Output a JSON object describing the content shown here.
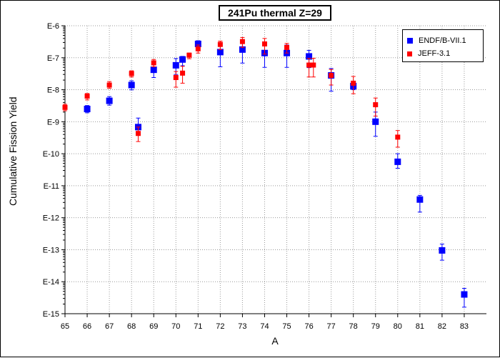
{
  "chart_data": {
    "type": "scatter",
    "title": "241Pu thermal Z=29",
    "xlabel": "A",
    "ylabel": "Cumulative Fission Yield",
    "xlim": [
      65,
      84
    ],
    "ylim": [
      1e-15,
      1e-06
    ],
    "yscale": "log",
    "grid": true,
    "legend_position": "top-right",
    "x_ticks": [
      "65",
      "66",
      "67",
      "68",
      "69",
      "70",
      "71",
      "72",
      "73",
      "74",
      "75",
      "76",
      "77",
      "78",
      "79",
      "80",
      "81",
      "82",
      "83"
    ],
    "y_ticks": [
      "E-6",
      "E-7",
      "E-8",
      "E-9",
      "E-10",
      "E-11",
      "E-12",
      "E-13",
      "E-14",
      "E-15"
    ],
    "series": [
      {
        "name": "ENDF/B-VII.1",
        "color": "#0000ff",
        "marker": "square",
        "points": [
          {
            "x": 66,
            "y": 2.5e-09,
            "lo": 1.9e-09,
            "hi": 3.2e-09
          },
          {
            "x": 67,
            "y": 4.5e-09,
            "lo": 3.3e-09,
            "hi": 6.1e-09
          },
          {
            "x": 68,
            "y": 1.4e-08,
            "lo": 9.9e-09,
            "hi": 1.9e-08
          },
          {
            "x": 68.3,
            "y": 6.8e-10,
            "lo": 4.5e-10,
            "hi": 1.3e-09
          },
          {
            "x": 69,
            "y": 4.2e-08,
            "lo": 2.4e-08,
            "hi": 6.7e-08
          },
          {
            "x": 70,
            "y": 5.8e-08,
            "lo": 3e-08,
            "hi": 9.4e-08
          },
          {
            "x": 70.3,
            "y": 8.8e-08,
            "lo": 5.6e-08,
            "hi": 1.1e-07
          },
          {
            "x": 71,
            "y": 2.7e-07,
            "lo": 2e-07,
            "hi": 3.4e-07
          },
          {
            "x": 72,
            "y": 1.5e-07,
            "lo": 5.2e-08,
            "hi": 2.9e-07
          },
          {
            "x": 73,
            "y": 1.8e-07,
            "lo": 6.8e-08,
            "hi": 3.4e-07
          },
          {
            "x": 74,
            "y": 1.4e-07,
            "lo": 5e-08,
            "hi": 2.4e-07
          },
          {
            "x": 75,
            "y": 1.4e-07,
            "lo": 5e-08,
            "hi": 2.5e-07
          },
          {
            "x": 76,
            "y": 1.1e-07,
            "lo": 4.9e-08,
            "hi": 1.7e-07
          },
          {
            "x": 77,
            "y": 2.8e-08,
            "lo": 9e-09,
            "hi": 4.6e-08
          },
          {
            "x": 78,
            "y": 1.3e-08,
            "lo": 1e-08,
            "hi": 1.7e-08
          },
          {
            "x": 79,
            "y": 1e-09,
            "lo": 3.5e-10,
            "hi": 2e-09
          },
          {
            "x": 80,
            "y": 5.6e-11,
            "lo": 3.5e-11,
            "hi": 1e-10
          },
          {
            "x": 81,
            "y": 3.7e-12,
            "lo": 1.5e-12,
            "hi": 5e-12
          },
          {
            "x": 82,
            "y": 9.5e-14,
            "lo": 4.7e-14,
            "hi": 1.5e-13
          },
          {
            "x": 83,
            "y": 4e-15,
            "lo": 1.6e-15,
            "hi": 6.2e-15
          }
        ]
      },
      {
        "name": "JEFF-3.1",
        "color": "#ff0000",
        "marker": "square",
        "points": [
          {
            "x": 65,
            "y": 2.8e-09,
            "lo": 2.2e-09,
            "hi": 3.5e-09
          },
          {
            "x": 66,
            "y": 6.3e-09,
            "lo": 4.8e-09,
            "hi": 7.6e-09
          },
          {
            "x": 67,
            "y": 1.4e-08,
            "lo": 1.1e-08,
            "hi": 1.8e-08
          },
          {
            "x": 68,
            "y": 3.2e-08,
            "lo": 2.5e-08,
            "hi": 3.9e-08
          },
          {
            "x": 68.3,
            "y": 4.3e-10,
            "lo": 2.4e-10,
            "hi": 6.8e-10
          },
          {
            "x": 69,
            "y": 6.9e-08,
            "lo": 5.2e-08,
            "hi": 8.8e-08
          },
          {
            "x": 70,
            "y": 2.4e-08,
            "lo": 1.2e-08,
            "hi": 3.7e-08
          },
          {
            "x": 70.3,
            "y": 3.3e-08,
            "lo": 1.6e-08,
            "hi": 5.4e-08
          },
          {
            "x": 70.6,
            "y": 1.2e-07,
            "lo": 9.3e-08,
            "hi": 1.4e-07
          },
          {
            "x": 71,
            "y": 1.9e-07,
            "lo": 1.4e-07,
            "hi": 2.5e-07
          },
          {
            "x": 72,
            "y": 2.6e-07,
            "lo": 1.8e-07,
            "hi": 3.3e-07
          },
          {
            "x": 73,
            "y": 3.2e-07,
            "lo": 2.1e-07,
            "hi": 4.3e-07
          },
          {
            "x": 74,
            "y": 2.7e-07,
            "lo": 1.3e-07,
            "hi": 4e-07
          },
          {
            "x": 75,
            "y": 2.1e-07,
            "lo": 1.4e-07,
            "hi": 2.8e-07
          },
          {
            "x": 76,
            "y": 5.9e-08,
            "lo": 2.5e-08,
            "hi": 9.6e-08
          },
          {
            "x": 76.2,
            "y": 5.9e-08,
            "lo": 2.5e-08,
            "hi": 9.6e-08
          },
          {
            "x": 77,
            "y": 2.8e-08,
            "lo": 1.4e-08,
            "hi": 4.3e-08
          },
          {
            "x": 78,
            "y": 1.6e-08,
            "lo": 7.5e-09,
            "hi": 2.6e-08
          },
          {
            "x": 79,
            "y": 3.4e-09,
            "lo": 1.5e-09,
            "hi": 5.5e-09
          },
          {
            "x": 80,
            "y": 3.3e-10,
            "lo": 1.6e-10,
            "hi": 5.3e-10
          }
        ]
      }
    ]
  }
}
